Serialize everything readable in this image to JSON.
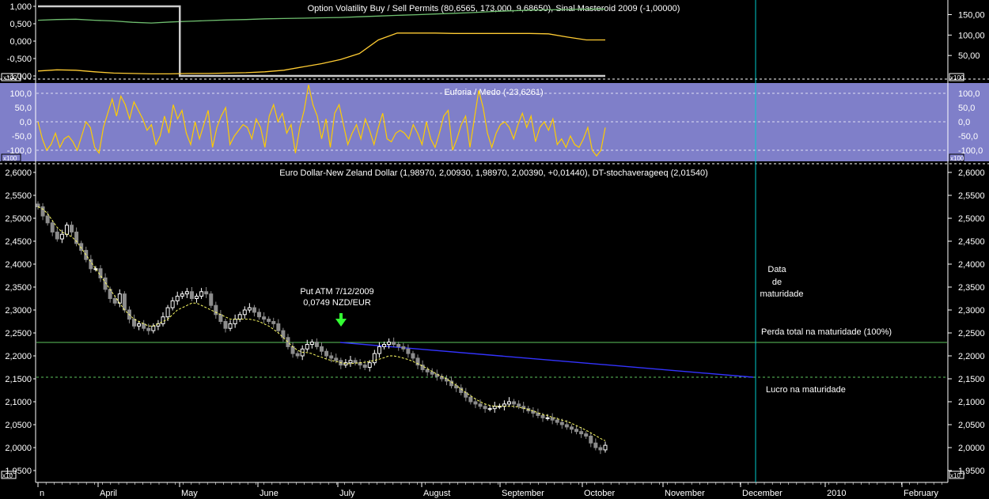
{
  "colors": {
    "background": "#000000",
    "panel_euforia": "#7f7fc9",
    "candle_up": "#ffffff",
    "candle_down": "#8c8c8c",
    "moving_average": "#ffff66",
    "euforia_line": "#ffcc00",
    "green_line": "#5ec65e",
    "resistance_line": "#3333ff",
    "maturity_line": "#00cccc",
    "annotation_green": "#33ff33",
    "annotation_cyan": "#33ffff",
    "annotation_orange": "#ffcc66"
  },
  "chart_data": [
    {
      "type": "line",
      "title": "Option Volatility Buy / Sell Permits (80,6565, 173,000, 9,68650), Sinal Masteroid 2009 (-1,00000)",
      "left_ticks": [
        "1,000",
        "0,500",
        "0,000",
        "-0,500",
        "-1,000"
      ],
      "right_ticks": [
        "150,00",
        "100,00",
        "50,00"
      ],
      "scale_box": "x100",
      "ylim_left": [
        -1000,
        1000
      ],
      "ylim_right": [
        0,
        180
      ],
      "series": [
        {
          "color": "#6fbf6f",
          "axis": "left",
          "values": [
            600,
            620,
            630,
            600,
            580,
            540,
            520,
            550,
            570,
            590,
            610,
            620,
            640,
            650,
            660,
            670,
            680,
            700,
            720,
            740,
            760,
            780,
            800,
            820,
            850,
            870,
            890,
            900,
            910,
            920,
            920
          ]
        },
        {
          "color": "#cccccc",
          "axis": "left",
          "values": [
            1000,
            1000,
            1000,
            1000,
            1000,
            1000,
            1000,
            1000,
            -1000,
            -1000,
            -1000,
            -1000,
            -1000,
            -1000,
            -1000,
            -1000,
            -1000,
            -1000,
            -1000,
            -1000,
            -1000,
            -1000,
            -1000,
            -1000,
            -1000,
            -1000,
            -1000,
            -1000,
            -1000,
            -1000,
            -1000
          ]
        },
        {
          "color": "#ffcc33",
          "axis": "right",
          "values": [
            12,
            15,
            14,
            10,
            7,
            6,
            5,
            5,
            6,
            6,
            7,
            8,
            10,
            14,
            22,
            30,
            40,
            55,
            88,
            105,
            105,
            105,
            104,
            104,
            104,
            104,
            104,
            103,
            95,
            88,
            88
          ]
        }
      ]
    },
    {
      "type": "line",
      "title": "Euforia / Medo (-23,6261)",
      "left_ticks": [
        "100,0",
        "50,0",
        "0,0",
        "-50,0",
        "-100,0"
      ],
      "right_ticks": [
        "100,0",
        "50,0",
        "0,0",
        "-50,0",
        "-100,0"
      ],
      "scale_box": "x100",
      "ylim": [
        -125,
        125
      ],
      "reference_lines": [
        100,
        0,
        -100
      ],
      "series": [
        {
          "color": "#ffcc00",
          "values": [
            0,
            -60,
            -100,
            -80,
            -40,
            -90,
            -60,
            -50,
            -70,
            -100,
            -50,
            0,
            -20,
            -90,
            -110,
            -20,
            30,
            80,
            20,
            90,
            60,
            10,
            70,
            40,
            10,
            -30,
            -10,
            -80,
            -50,
            20,
            -40,
            60,
            10,
            40,
            -40,
            -80,
            0,
            -60,
            -10,
            40,
            -90,
            -20,
            20,
            50,
            -80,
            -50,
            -30,
            -10,
            -20,
            -60,
            10,
            -20,
            -90,
            20,
            60,
            0,
            30,
            -40,
            -10,
            -110,
            -20,
            40,
            130,
            60,
            20,
            -60,
            10,
            -90,
            30,
            60,
            -10,
            -80,
            -40,
            -10,
            -60,
            10,
            -30,
            -80,
            -20,
            30,
            -60,
            -70,
            -40,
            -30,
            -40,
            -60,
            -10,
            -40,
            -80,
            0,
            -60,
            -90,
            -40,
            20,
            40,
            -100,
            -60,
            -10,
            20,
            -90,
            10,
            110,
            50,
            -40,
            -90,
            -40,
            -10,
            0,
            -20,
            -60,
            -10,
            30,
            -20,
            20,
            -70,
            -20,
            0,
            -30,
            10,
            -80,
            -60,
            -90,
            -50,
            -80,
            -90,
            -60,
            -20,
            -100,
            -120,
            -100,
            -20
          ]
        }
      ]
    },
    {
      "type": "candlestick",
      "title": "Euro Dollar-New Zeland Dollar (1,98970, 2,00930, 1,98970, 2,00390, +0,01440), DT-stochaverageeq (2,01540)",
      "left_ticks": [
        "2,6000",
        "2,5500",
        "2,5000",
        "2,4500",
        "2,4000",
        "2,3500",
        "2,3000",
        "2,2500",
        "2,2000",
        "2,1500",
        "2,1000",
        "2,0500",
        "2,0000",
        "1,9500"
      ],
      "right_ticks": [
        "2,6000",
        "2,5500",
        "2,5000",
        "2,4500",
        "2,4000",
        "2,3500",
        "2,3000",
        "2,2500",
        "2,2000",
        "2,1500",
        "2,1000",
        "2,0500",
        "2,0000",
        "1,9500"
      ],
      "scale_box": "x10",
      "ylim": [
        1.94,
        2.61
      ],
      "x_ticks": [
        "n",
        "April",
        "May",
        "June",
        "July",
        "August",
        "September",
        "October",
        "November",
        "December",
        "2010",
        "February"
      ],
      "closes": [
        2.525,
        2.505,
        2.49,
        2.47,
        2.455,
        2.465,
        2.485,
        2.47,
        2.445,
        2.43,
        2.41,
        2.39,
        2.39,
        2.37,
        2.345,
        2.325,
        2.315,
        2.335,
        2.3,
        2.28,
        2.265,
        2.27,
        2.26,
        2.255,
        2.265,
        2.27,
        2.285,
        2.305,
        2.32,
        2.33,
        2.335,
        2.34,
        2.325,
        2.33,
        2.34,
        2.335,
        2.31,
        2.29,
        2.275,
        2.26,
        2.27,
        2.28,
        2.29,
        2.3,
        2.305,
        2.295,
        2.285,
        2.28,
        2.275,
        2.27,
        2.255,
        2.24,
        2.22,
        2.205,
        2.2,
        2.215,
        2.225,
        2.23,
        2.22,
        2.21,
        2.2,
        2.195,
        2.19,
        2.18,
        2.185,
        2.19,
        2.185,
        2.18,
        2.175,
        2.185,
        2.205,
        2.22,
        2.225,
        2.23,
        2.225,
        2.22,
        2.215,
        2.205,
        2.195,
        2.18,
        2.17,
        2.165,
        2.16,
        2.155,
        2.15,
        2.145,
        2.135,
        2.13,
        2.12,
        2.11,
        2.1,
        2.095,
        2.09,
        2.085,
        2.085,
        2.09,
        2.09,
        2.095,
        2.1,
        2.095,
        2.09,
        2.085,
        2.08,
        2.075,
        2.07,
        2.065,
        2.065,
        2.06,
        2.055,
        2.05,
        2.045,
        2.04,
        2.035,
        2.03,
        2.025,
        2.01,
        2.0,
        1.995,
        2.005
      ],
      "moving_average": [
        2.525,
        2.52,
        2.51,
        2.495,
        2.48,
        2.47,
        2.465,
        2.46,
        2.45,
        2.435,
        2.42,
        2.405,
        2.39,
        2.375,
        2.36,
        2.345,
        2.33,
        2.315,
        2.3,
        2.29,
        2.28,
        2.275,
        2.27,
        2.265,
        2.265,
        2.27,
        2.275,
        2.28,
        2.29,
        2.3,
        2.305,
        2.31,
        2.315,
        2.315,
        2.31,
        2.305,
        2.3,
        2.295,
        2.29,
        2.285,
        2.28,
        2.28,
        2.28,
        2.28,
        2.28,
        2.278,
        2.275,
        2.27,
        2.265,
        2.258,
        2.25,
        2.24,
        2.23,
        2.22,
        2.212,
        2.208,
        2.207,
        2.205,
        2.2,
        2.197,
        2.193,
        2.19,
        2.188,
        2.185,
        2.183,
        2.183,
        2.184,
        2.185,
        2.186,
        2.188,
        2.19,
        2.193,
        2.196,
        2.2,
        2.2,
        2.198,
        2.195,
        2.192,
        2.188,
        2.183,
        2.178,
        2.172,
        2.166,
        2.16,
        2.155,
        2.15,
        2.143,
        2.136,
        2.128,
        2.12,
        2.113,
        2.106,
        2.1,
        2.095,
        2.092,
        2.09,
        2.09,
        2.09,
        2.09,
        2.09,
        2.088,
        2.086,
        2.083,
        2.08,
        2.076,
        2.072,
        2.07,
        2.066,
        2.063,
        2.06,
        2.057,
        2.053,
        2.048,
        2.043,
        2.038,
        2.032,
        2.026,
        2.02,
        2.015
      ]
    }
  ],
  "annotations": {
    "put_line1": "Put ATM 7/12/2009",
    "put_line2": "0,0749 NZD/EUR",
    "maturity_line1": "Data",
    "maturity_line2": "de",
    "maturity_line3": "maturidade",
    "perda": "Perda total na maturidade (100%)",
    "lucro": "Lucro na maturidade"
  }
}
